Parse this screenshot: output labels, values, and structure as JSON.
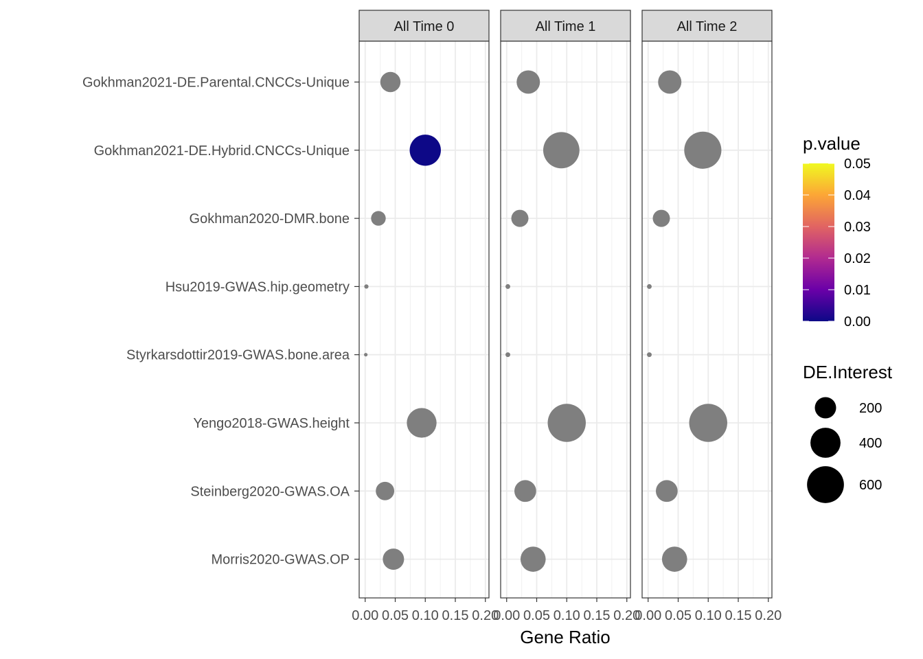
{
  "chart_data": {
    "type": "scatter",
    "xlabel": "Gene Ratio",
    "ylabel": "",
    "xlim": [
      -0.01,
      0.206
    ],
    "x_ticks": [
      0.0,
      0.05,
      0.1,
      0.15,
      0.2
    ],
    "x_tick_labels": [
      "0.00",
      "0.05",
      "0.10",
      "0.15",
      "0.20"
    ],
    "grid": true,
    "facets": [
      "All Time 0",
      "All Time 1",
      "All Time 2"
    ],
    "categories": [
      "Gokhman2021-DE.Parental.CNCCs-Unique",
      "Gokhman2021-DE.Hybrid.CNCCs-Unique",
      "Gokhman2020-DMR.bone",
      "Hsu2019-GWAS.hip.geometry",
      "Styrkarsdottir2019-GWAS.bone.area",
      "Yengo2018-GWAS.height",
      "Steinberg2020-GWAS.OA",
      "Morris2020-GWAS.OP"
    ],
    "na_color": "#7f7f7f",
    "points": [
      {
        "facet": 0,
        "category": 0,
        "x": 0.042,
        "size": 180,
        "p_value": null
      },
      {
        "facet": 0,
        "category": 1,
        "x": 0.1,
        "size": 430,
        "p_value": 0.0
      },
      {
        "facet": 0,
        "category": 2,
        "x": 0.022,
        "size": 95,
        "p_value": null
      },
      {
        "facet": 0,
        "category": 3,
        "x": 0.002,
        "size": 8,
        "p_value": null
      },
      {
        "facet": 0,
        "category": 4,
        "x": 0.001,
        "size": 5,
        "p_value": null
      },
      {
        "facet": 0,
        "category": 5,
        "x": 0.094,
        "size": 390,
        "p_value": null
      },
      {
        "facet": 0,
        "category": 6,
        "x": 0.033,
        "size": 150,
        "p_value": null
      },
      {
        "facet": 0,
        "category": 7,
        "x": 0.047,
        "size": 200,
        "p_value": null
      },
      {
        "facet": 1,
        "category": 0,
        "x": 0.036,
        "size": 240,
        "p_value": null
      },
      {
        "facet": 1,
        "category": 1,
        "x": 0.091,
        "size": 580,
        "p_value": null
      },
      {
        "facet": 1,
        "category": 2,
        "x": 0.022,
        "size": 130,
        "p_value": null
      },
      {
        "facet": 1,
        "category": 3,
        "x": 0.002,
        "size": 10,
        "p_value": null
      },
      {
        "facet": 1,
        "category": 4,
        "x": 0.002,
        "size": 10,
        "p_value": null
      },
      {
        "facet": 1,
        "category": 5,
        "x": 0.1,
        "size": 640,
        "p_value": null
      },
      {
        "facet": 1,
        "category": 6,
        "x": 0.031,
        "size": 210,
        "p_value": null
      },
      {
        "facet": 1,
        "category": 7,
        "x": 0.044,
        "size": 280,
        "p_value": null
      },
      {
        "facet": 2,
        "category": 0,
        "x": 0.036,
        "size": 240,
        "p_value": null
      },
      {
        "facet": 2,
        "category": 1,
        "x": 0.091,
        "size": 610,
        "p_value": null
      },
      {
        "facet": 2,
        "category": 2,
        "x": 0.022,
        "size": 130,
        "p_value": null
      },
      {
        "facet": 2,
        "category": 3,
        "x": 0.002,
        "size": 10,
        "p_value": null
      },
      {
        "facet": 2,
        "category": 4,
        "x": 0.002,
        "size": 10,
        "p_value": null
      },
      {
        "facet": 2,
        "category": 5,
        "x": 0.1,
        "size": 640,
        "p_value": null
      },
      {
        "facet": 2,
        "category": 6,
        "x": 0.031,
        "size": 210,
        "p_value": null
      },
      {
        "facet": 2,
        "category": 7,
        "x": 0.044,
        "size": 280,
        "p_value": null
      }
    ],
    "color_legend": {
      "title": "p.value",
      "colormap": "plasma",
      "stops": [
        "#0d0887",
        "#6a00a8",
        "#b12a90",
        "#e16462",
        "#fca636",
        "#f0f921"
      ],
      "range": [
        0.0,
        0.05
      ],
      "tick_values": [
        0.0,
        0.01,
        0.02,
        0.03,
        0.04,
        0.05
      ],
      "tick_labels": [
        "0.00",
        "0.01",
        "0.02",
        "0.03",
        "0.04",
        "0.05"
      ]
    },
    "size_legend": {
      "title": "DE.Interest",
      "values": [
        200,
        400,
        600
      ],
      "labels": [
        "200",
        "400",
        "600"
      ]
    }
  }
}
